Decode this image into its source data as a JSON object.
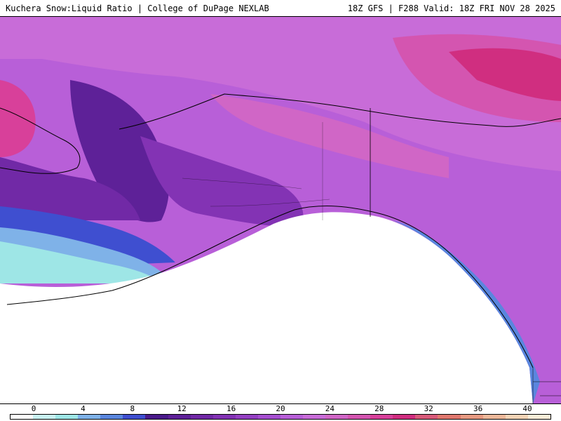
{
  "header": {
    "title_left": "Kuchera Snow:Liquid Ratio | College of DuPage NEXLAB",
    "title_right": "18Z GFS | F288 Valid: 18Z FRI NOV 28 2025"
  },
  "colorbar": {
    "ticks": [
      "0",
      "4",
      "8",
      "12",
      "16",
      "20",
      "24",
      "28",
      "32",
      "36",
      "40"
    ],
    "colors": [
      "#ffffff",
      "#c8f0f0",
      "#9ee6e6",
      "#7fb2e8",
      "#5a86de",
      "#3f4fd0",
      "#4a1a8a",
      "#5e2198",
      "#7129a6",
      "#8333b4",
      "#9440c2",
      "#a64fd0",
      "#b85fd8",
      "#c86cd8",
      "#d066c6",
      "#d455b0",
      "#d8409a",
      "#d02e80",
      "#d85a7a",
      "#e0786e",
      "#e69a82",
      "#ecb89a",
      "#f2d4b6",
      "#f8ecd8"
    ]
  },
  "map": {
    "background_color": "#b85fd8",
    "ocean_blank_color": "#ffffff",
    "border_color": "#000000"
  }
}
